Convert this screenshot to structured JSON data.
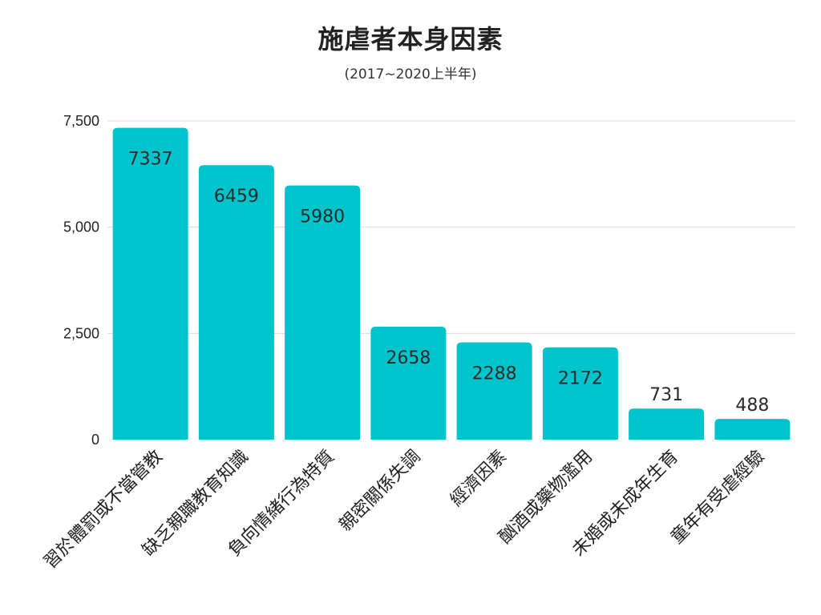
{
  "chart_data": {
    "type": "bar",
    "title": "施虐者本身因素",
    "subtitle": "(2017~2020上半年)",
    "categories": [
      "習於體罰或不當管教",
      "缺乏親職教育知識",
      "負向情緒行為特質",
      "親密關係失調",
      "經濟因素",
      "酗酒或藥物濫用",
      "未婚或未成年生育",
      "童年有受虐經驗"
    ],
    "values": [
      7337,
      6459,
      5980,
      2658,
      2288,
      2172,
      731,
      488
    ],
    "data_labels": [
      "7337",
      "6459",
      "5980",
      "2658",
      "2288",
      "2172",
      "731",
      "488"
    ],
    "ylim": [
      0,
      7500
    ],
    "yticks": [
      0,
      2500,
      5000,
      7500
    ],
    "ytick_labels": [
      "0",
      "2,500",
      "5,000",
      "7,500"
    ],
    "grid": true,
    "bar_color": "#00c4cc",
    "grid_color": "#dcdcdc"
  }
}
